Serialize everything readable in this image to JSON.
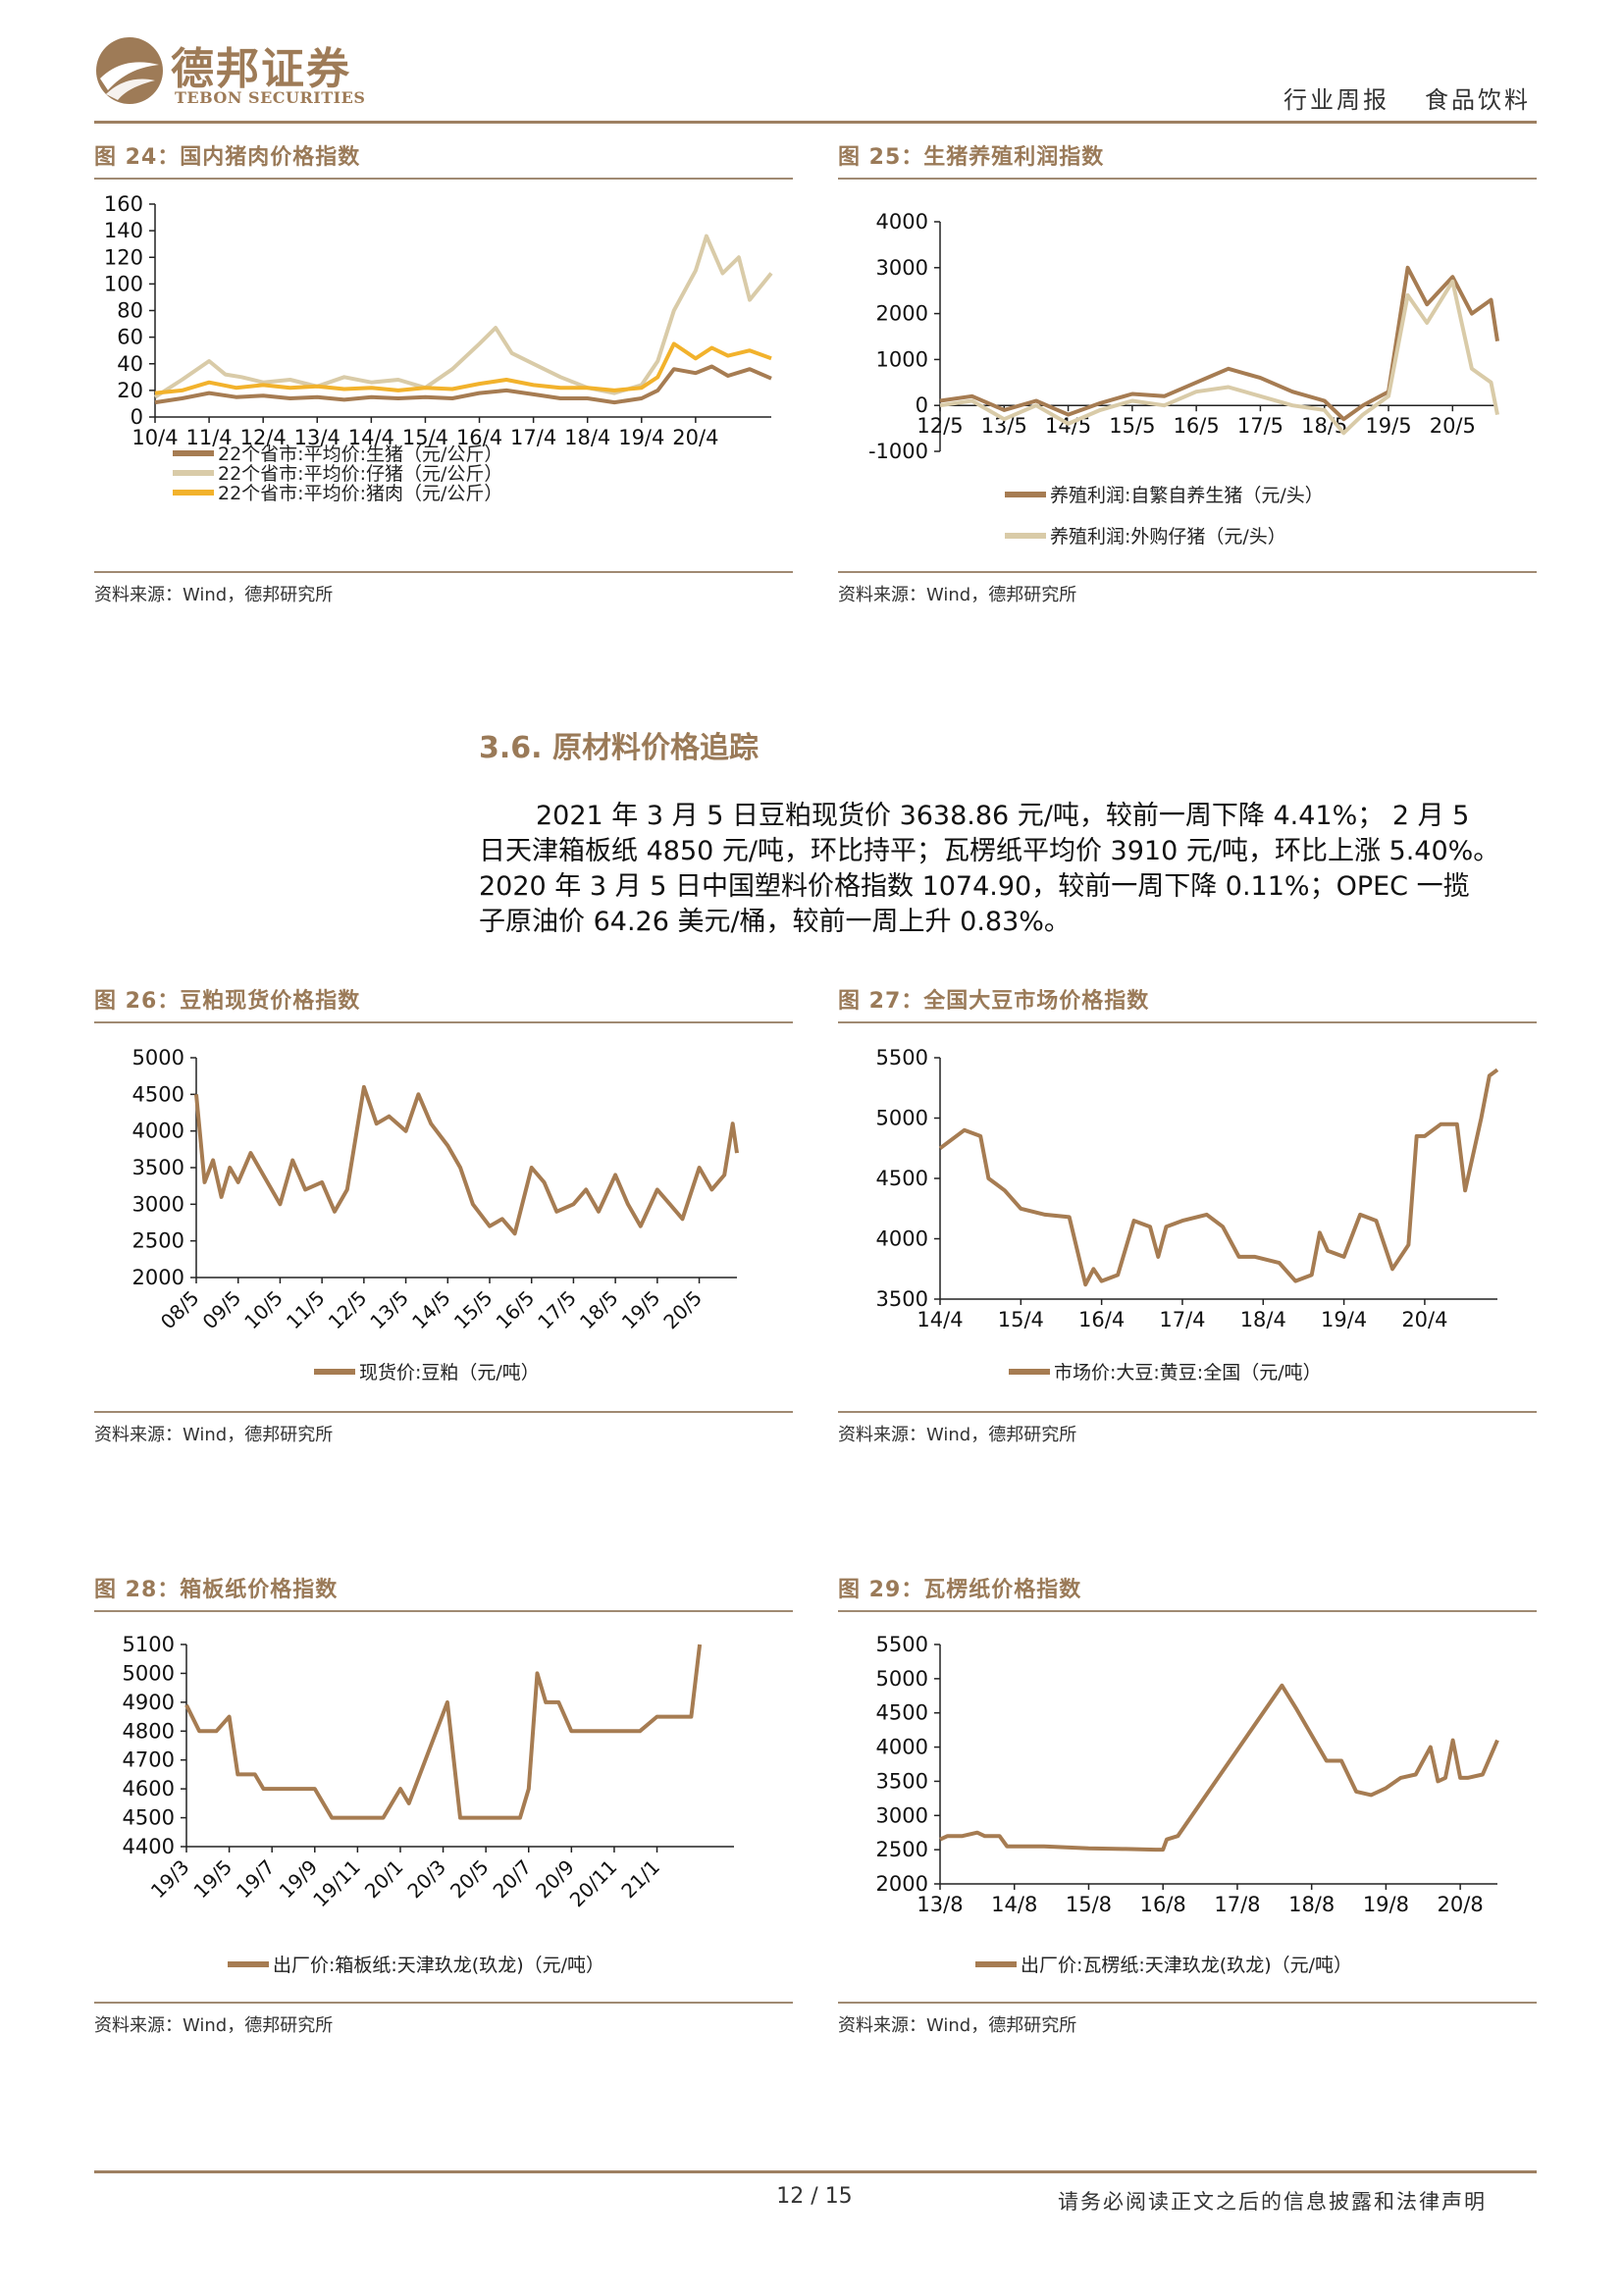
{
  "header": {
    "logo_cn": "德邦证券",
    "logo_en": "TEBON SECURITIES",
    "doc_type": "行业周报",
    "industry": "食品饮料"
  },
  "figures": {
    "fig24": {
      "title": "图 24：国内猪肉价格指数",
      "source": "资料来源：Wind，德邦研究所"
    },
    "fig25": {
      "title": "图 25：生猪养殖利润指数",
      "source": "资料来源：Wind，德邦研究所"
    },
    "fig26": {
      "title": "图 26：豆粕现货价格指数",
      "source": "资料来源：Wind，德邦研究所"
    },
    "fig27": {
      "title": "图 27：全国大豆市场价格指数",
      "source": "资料来源：Wind，德邦研究所"
    },
    "fig28": {
      "title": "图 28：箱板纸价格指数",
      "source": "资料来源：Wind，德邦研究所"
    },
    "fig29": {
      "title": "图 29：瓦楞纸价格指数",
      "source": "资料来源：Wind，德邦研究所"
    }
  },
  "section": {
    "title": "3.6. 原材料价格追踪",
    "lines": [
      "2021 年 3 月 5 日豆粕现货价 3638.86 元/吨，较前一周下降 4.41%； 2 月 5",
      "日天津箱板纸 4850 元/吨，环比持平；瓦楞纸平均价 3910 元/吨，环比上涨 5.40%。",
      "2020 年 3 月 5 日中国塑料价格指数 1074.90，较前一周下降 0.11%；OPEC 一揽",
      "子原油价 64.26 美元/桶，较前一周上升 0.83%。"
    ]
  },
  "footer": {
    "page": "12 / 15",
    "disclaimer": "请务必阅读正文之后的信息披露和法律声明"
  },
  "colors": {
    "brown": "#a67c52",
    "beige": "#d9cba8",
    "orange": "#f2b22c",
    "gold_rule": "#9e8062"
  },
  "chart_data": [
    {
      "id": "fig24",
      "type": "line",
      "ylim": [
        0,
        160
      ],
      "yticks": [
        0,
        20,
        40,
        60,
        80,
        100,
        120,
        140,
        160
      ],
      "xlim": [
        0,
        11.4
      ],
      "xtick_labels": [
        "10/4",
        "11/4",
        "12/4",
        "13/4",
        "14/4",
        "15/4",
        "16/4",
        "17/4",
        "18/4",
        "19/4",
        "20/4"
      ],
      "series": [
        {
          "name": "22个省市:平均价:生猪（元/公斤）",
          "color": "#a67c52",
          "x": [
            0,
            0.5,
            1,
            1.5,
            2,
            2.5,
            3,
            3.5,
            4,
            4.5,
            5,
            5.5,
            6,
            6.5,
            7,
            7.5,
            8,
            8.5,
            9,
            9.3,
            9.6,
            10,
            10.3,
            10.6,
            11,
            11.4
          ],
          "y": [
            11,
            14,
            18,
            15,
            16,
            14,
            15,
            13,
            15,
            14,
            15,
            14,
            18,
            20,
            17,
            14,
            14,
            11,
            14,
            20,
            36,
            33,
            38,
            31,
            36,
            29
          ]
        },
        {
          "name": "22个省市:平均价:仔猪（元/公斤）",
          "color": "#d9cba8",
          "x": [
            0,
            0.5,
            1,
            1.3,
            1.6,
            2,
            2.5,
            3,
            3.5,
            4,
            4.5,
            5,
            5.5,
            6,
            6.3,
            6.6,
            7,
            7.5,
            8,
            8.5,
            9,
            9.3,
            9.6,
            10,
            10.2,
            10.5,
            10.8,
            11,
            11.4
          ],
          "y": [
            15,
            28,
            42,
            32,
            30,
            26,
            28,
            23,
            30,
            26,
            28,
            22,
            36,
            55,
            67,
            48,
            40,
            30,
            22,
            18,
            24,
            42,
            80,
            110,
            136,
            108,
            120,
            88,
            108
          ]
        },
        {
          "name": "22个省市:平均价:猪肉（元/公斤）",
          "color": "#f2b22c",
          "x": [
            0,
            0.5,
            1,
            1.5,
            2,
            2.5,
            3,
            3.5,
            4,
            4.5,
            5,
            5.5,
            6,
            6.5,
            7,
            7.5,
            8,
            8.5,
            9,
            9.3,
            9.6,
            10,
            10.3,
            10.6,
            11,
            11.4
          ],
          "y": [
            18,
            20,
            26,
            22,
            24,
            22,
            23,
            21,
            22,
            20,
            22,
            21,
            25,
            28,
            24,
            22,
            22,
            20,
            22,
            30,
            55,
            44,
            52,
            46,
            50,
            44
          ]
        }
      ]
    },
    {
      "id": "fig25",
      "type": "line",
      "ylim": [
        -1000,
        4000
      ],
      "yticks": [
        -1000,
        0,
        1000,
        2000,
        3000,
        4000
      ],
      "xlim": [
        0,
        8.7
      ],
      "xtick_labels": [
        "12/5",
        "13/5",
        "14/5",
        "15/5",
        "16/5",
        "17/5",
        "18/5",
        "19/5",
        "20/5"
      ],
      "series": [
        {
          "name": "养殖利润:自繁自养生猪（元/头）",
          "color": "#a67c52",
          "x": [
            0,
            0.5,
            1,
            1.5,
            2,
            2.5,
            3,
            3.5,
            4,
            4.5,
            5,
            5.5,
            6,
            6.3,
            6.6,
            7,
            7.3,
            7.6,
            8,
            8.3,
            8.6,
            8.7
          ],
          "y": [
            100,
            200,
            -100,
            100,
            -200,
            50,
            250,
            200,
            500,
            800,
            600,
            300,
            100,
            -300,
            0,
            300,
            3000,
            2200,
            2800,
            2000,
            2300,
            1400
          ]
        },
        {
          "name": "养殖利润:外购仔猪（元/头）",
          "color": "#d9cba8",
          "x": [
            0,
            0.5,
            1,
            1.5,
            2,
            2.5,
            3,
            3.5,
            4,
            4.5,
            5,
            5.5,
            6,
            6.3,
            6.6,
            7,
            7.3,
            7.6,
            8,
            8.3,
            8.6,
            8.7
          ],
          "y": [
            0,
            100,
            -300,
            0,
            -400,
            -100,
            100,
            0,
            300,
            400,
            200,
            0,
            -100,
            -600,
            -200,
            200,
            2400,
            1800,
            2700,
            800,
            500,
            -200
          ]
        }
      ]
    },
    {
      "id": "fig26",
      "type": "line",
      "ylim": [
        2000,
        5000
      ],
      "yticks": [
        2000,
        2500,
        3000,
        3500,
        4000,
        4500,
        5000
      ],
      "xlim": [
        0,
        12.9
      ],
      "xtick_labels": [
        "08/5",
        "09/5",
        "10/5",
        "11/5",
        "12/5",
        "13/5",
        "14/5",
        "15/5",
        "16/5",
        "17/5",
        "18/5",
        "19/5",
        "20/5"
      ],
      "series": [
        {
          "name": "现货价:豆粕（元/吨）",
          "color": "#a67c52",
          "x": [
            0,
            0.2,
            0.4,
            0.6,
            0.8,
            1,
            1.3,
            1.6,
            2,
            2.3,
            2.6,
            3,
            3.3,
            3.6,
            4,
            4.3,
            4.6,
            5,
            5.3,
            5.6,
            6,
            6.3,
            6.6,
            7,
            7.3,
            7.6,
            8,
            8.3,
            8.6,
            9,
            9.3,
            9.6,
            10,
            10.3,
            10.6,
            11,
            11.3,
            11.6,
            12,
            12.3,
            12.6,
            12.8,
            12.9
          ],
          "y": [
            4500,
            3300,
            3600,
            3100,
            3500,
            3300,
            3700,
            3400,
            3000,
            3600,
            3200,
            3300,
            2900,
            3200,
            4600,
            4100,
            4200,
            4000,
            4500,
            4100,
            3800,
            3500,
            3000,
            2700,
            2800,
            2600,
            3500,
            3300,
            2900,
            3000,
            3200,
            2900,
            3400,
            3000,
            2700,
            3200,
            3000,
            2800,
            3500,
            3200,
            3400,
            4100,
            3700
          ]
        }
      ]
    },
    {
      "id": "fig27",
      "type": "line",
      "ylim": [
        3500,
        5500
      ],
      "yticks": [
        3500,
        4000,
        4500,
        5000,
        5500
      ],
      "xlim": [
        0,
        6.9
      ],
      "xtick_labels": [
        "14/4",
        "15/4",
        "16/4",
        "17/4",
        "18/4",
        "19/4",
        "20/4"
      ],
      "series": [
        {
          "name": "市场价:大豆:黄豆:全国（元/吨）",
          "color": "#a67c52",
          "x": [
            0,
            0.3,
            0.5,
            0.6,
            0.8,
            1,
            1.3,
            1.6,
            1.8,
            1.9,
            2,
            2.2,
            2.4,
            2.6,
            2.7,
            2.8,
            3,
            3.3,
            3.5,
            3.7,
            3.9,
            4.2,
            4.4,
            4.6,
            4.7,
            4.8,
            5,
            5.2,
            5.4,
            5.6,
            5.8,
            5.9,
            6,
            6.2,
            6.4,
            6.5,
            6.7,
            6.8,
            6.9
          ],
          "y": [
            4750,
            4900,
            4850,
            4500,
            4400,
            4250,
            4200,
            4180,
            3620,
            3750,
            3650,
            3700,
            4150,
            4100,
            3850,
            4100,
            4150,
            4200,
            4100,
            3850,
            3850,
            3800,
            3650,
            3700,
            4050,
            3900,
            3850,
            4200,
            4150,
            3750,
            3950,
            4850,
            4850,
            4950,
            4950,
            4400,
            5000,
            5350,
            5400
          ]
        }
      ]
    },
    {
      "id": "fig28",
      "type": "line",
      "ylim": [
        4400,
        5100
      ],
      "yticks": [
        4400,
        4500,
        4600,
        4700,
        4800,
        4900,
        5000,
        5100
      ],
      "xlim": [
        0,
        12.8
      ],
      "xtick_labels": [
        "19/3",
        "19/5",
        "19/7",
        "19/9",
        "19/11",
        "20/1",
        "20/3",
        "20/5",
        "20/7",
        "20/9",
        "20/11",
        "21/1"
      ],
      "series": [
        {
          "name": "出厂价:箱板纸:天津玖龙(玖龙)（元/吨）",
          "color": "#a67c52",
          "x": [
            0,
            0.3,
            0.7,
            1,
            1.2,
            1.6,
            1.8,
            2.5,
            3,
            3.4,
            4,
            4.4,
            4.6,
            5,
            5.2,
            6.1,
            6.4,
            6.8,
            7,
            7.8,
            8,
            8.2,
            8.4,
            8.7,
            9,
            9.4,
            10,
            10.6,
            11,
            11.6,
            11.8,
            12
          ],
          "y": [
            4890,
            4800,
            4800,
            4850,
            4650,
            4650,
            4600,
            4600,
            4600,
            4500,
            4500,
            4500,
            4500,
            4600,
            4550,
            4900,
            4500,
            4500,
            4500,
            4500,
            4600,
            5000,
            4900,
            4900,
            4800,
            4800,
            4800,
            4800,
            4850,
            4850,
            4850,
            5100
          ]
        }
      ]
    },
    {
      "id": "fig29",
      "type": "line",
      "ylim": [
        2000,
        5500
      ],
      "yticks": [
        2000,
        2500,
        3000,
        3500,
        4000,
        4500,
        5000,
        5500
      ],
      "xlim": [
        0,
        7.5
      ],
      "xtick_labels": [
        "13/8",
        "14/8",
        "15/8",
        "16/8",
        "17/8",
        "18/8",
        "19/8",
        "20/8"
      ],
      "series": [
        {
          "name": "出厂价:瓦楞纸:天津玖龙(玖龙)（元/吨）",
          "color": "#a67c52",
          "x": [
            0,
            0.1,
            0.3,
            0.5,
            0.6,
            0.8,
            0.9,
            1,
            1.4,
            2,
            2.5,
            2.9,
            3,
            3.05,
            3.2,
            4.6,
            4.8,
            5.2,
            5.4,
            5.6,
            5.8,
            6,
            6.2,
            6.4,
            6.6,
            6.7,
            6.8,
            6.9,
            7,
            7.1,
            7.3,
            7.5
          ],
          "y": [
            2650,
            2700,
            2700,
            2750,
            2700,
            2700,
            2550,
            2550,
            2550,
            2520,
            2510,
            2500,
            2500,
            2650,
            2700,
            4900,
            4550,
            3800,
            3800,
            3350,
            3300,
            3400,
            3550,
            3600,
            4000,
            3500,
            3550,
            4100,
            3550,
            3550,
            3600,
            4100
          ]
        }
      ]
    }
  ]
}
